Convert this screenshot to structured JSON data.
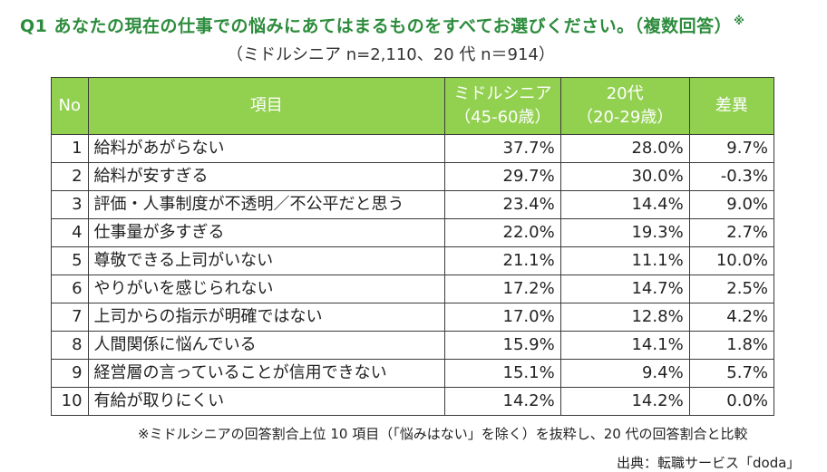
{
  "title": "Q1 あなたの現在の仕事での悩みにあてはまるものをすべてお選びください。（複数回答）",
  "title_mark": "※",
  "subtitle": "（ミドルシニア n=2,110、20 代 n＝914）",
  "colors": {
    "title": "#2c8c3c",
    "header_bg": "#92d050",
    "header_text": "#ffffff",
    "border": "#3a3a3a"
  },
  "table": {
    "headers": {
      "no": "No",
      "item": "項目",
      "middle_line1": "ミドルシニア",
      "middle_line2": "（45-60歳）",
      "twenties_line1": "20代",
      "twenties_line2": "（20-29歳）",
      "diff": "差異"
    },
    "rows": [
      {
        "no": "1",
        "item": "給料があがらない",
        "middle": "37.7%",
        "twenties": "28.0%",
        "diff": "9.7%"
      },
      {
        "no": "2",
        "item": "給料が安すぎる",
        "middle": "29.7%",
        "twenties": "30.0%",
        "diff": "-0.3%"
      },
      {
        "no": "3",
        "item": "評価・人事制度が不透明／不公平だと思う",
        "middle": "23.4%",
        "twenties": "14.4%",
        "diff": "9.0%"
      },
      {
        "no": "4",
        "item": "仕事量が多すぎる",
        "middle": "22.0%",
        "twenties": "19.3%",
        "diff": "2.7%"
      },
      {
        "no": "5",
        "item": "尊敬できる上司がいない",
        "middle": "21.1%",
        "twenties": "11.1%",
        "diff": "10.0%"
      },
      {
        "no": "6",
        "item": "やりがいを感じられない",
        "middle": "17.2%",
        "twenties": "14.7%",
        "diff": "2.5%"
      },
      {
        "no": "7",
        "item": "上司からの指示が明確ではない",
        "middle": "17.0%",
        "twenties": "12.8%",
        "diff": "4.2%"
      },
      {
        "no": "8",
        "item": "人間関係に悩んでいる",
        "middle": "15.9%",
        "twenties": "14.1%",
        "diff": "1.8%"
      },
      {
        "no": "9",
        "item": "経営層の言っていることが信用できない",
        "middle": "15.1%",
        "twenties": "9.4%",
        "diff": "5.7%"
      },
      {
        "no": "10",
        "item": "有給が取りにくい",
        "middle": "14.2%",
        "twenties": "14.2%",
        "diff": "0.0%"
      }
    ]
  },
  "note": "※ミドルシニアの回答割合上位 10 項目（「悩みはない」を除く）を抜粋し、20 代の回答割合と比較",
  "source": "出典：転職サービス「doda」"
}
